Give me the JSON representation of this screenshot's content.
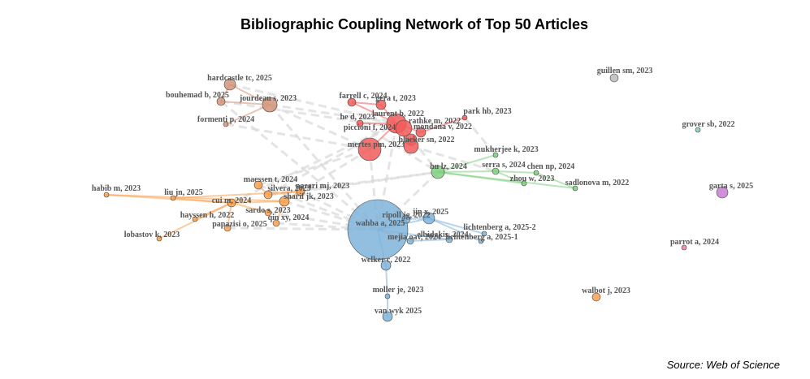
{
  "header": {
    "title": "Bibliographic Coupling Network of Top 50 Articles"
  },
  "footer": {
    "source": "Source: Web of Science"
  },
  "nodes": [
    {
      "label": "hardcastle tc, 2025"
    },
    {
      "label": "bouhemad b, 2025"
    },
    {
      "label": "jourdeau s, 2023"
    },
    {
      "label": "formenti p, 2024"
    },
    {
      "label": "farrell c, 2024"
    },
    {
      "label": "gera t, 2023"
    },
    {
      "label": "laurent b, 2022"
    },
    {
      "label": "he d, 2023"
    },
    {
      "label": "rathke m, 2022"
    },
    {
      "label": "park hb, 2023"
    },
    {
      "label": "piccioni f, 2024"
    },
    {
      "label": "mondana v, 2022"
    },
    {
      "label": "blacker sn, 2022"
    },
    {
      "label": "mertes pm, 2023"
    },
    {
      "label": "mukherjee k, 2023"
    },
    {
      "label": "hu lz, 2024"
    },
    {
      "label": "serra s, 2024"
    },
    {
      "label": "chen np, 2024"
    },
    {
      "label": "zhou w, 2023"
    },
    {
      "label": "sadlonova m, 2022"
    },
    {
      "label": "habib m, 2023"
    },
    {
      "label": "liu jn, 2025"
    },
    {
      "label": "maessen t, 2024"
    },
    {
      "label": "silvera, 2023"
    },
    {
      "label": "nazari mj, 2023"
    },
    {
      "label": "sharif jk, 2023"
    },
    {
      "label": "cui m, 2024"
    },
    {
      "label": "sardo s, 2023"
    },
    {
      "label": "hayssen h, 2022"
    },
    {
      "label": "papazisi o, 2025"
    },
    {
      "label": "qin xy, 2024"
    },
    {
      "label": "lobastov k, 2023"
    },
    {
      "label": "wahba a, 2025"
    },
    {
      "label": "ripoll jg, 2022"
    },
    {
      "label": "jin x, 2025"
    },
    {
      "label": "lichtenberg a, 2025-2"
    },
    {
      "label": "lichtenberg a, 2025-1"
    },
    {
      "label": "mejia oav, 2024"
    },
    {
      "label": "elbidakis, 2024"
    },
    {
      "label": "welker c, 2022"
    },
    {
      "label": "moller je, 2023"
    },
    {
      "label": "van wyk 2025"
    },
    {
      "label": "guillen sm, 2023"
    },
    {
      "label": "grover sb, 2022"
    },
    {
      "label": "garta s, 2025"
    },
    {
      "label": "parrot a, 2024"
    },
    {
      "label": "walbot j, 2023"
    }
  ]
}
